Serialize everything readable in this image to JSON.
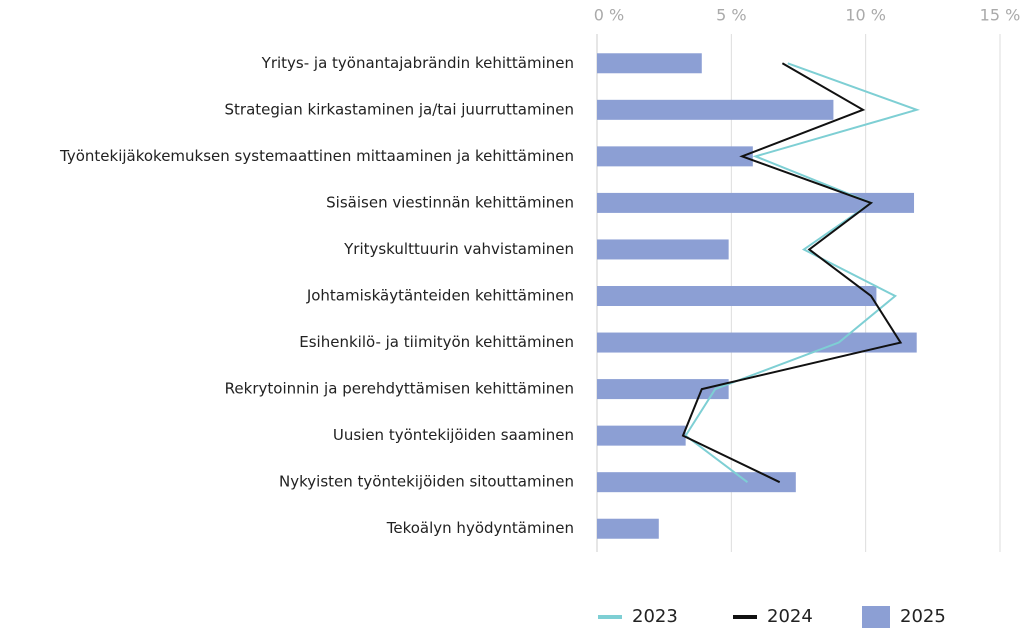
{
  "chart_data": {
    "type": "bar",
    "orientation": "horizontal",
    "categories": [
      "Yritys- ja työnantajabrändin kehittäminen",
      "Strategian kirkastaminen ja/tai juurruttaminen",
      "Työntekijäkokemuksen systemaattinen mittaaminen ja kehittäminen",
      "Sisäisen viestinnän kehittäminen",
      "Yrityskulttuurin vahvistaminen",
      "Johtamiskäytänteiden kehittäminen",
      "Esihenkilö- ja tiimityön kehittäminen",
      "Rekrytoinnin ja perehdyttämisen kehittäminen",
      "Uusien työntekijöiden saaminen",
      "Nykyisten työntekijöiden sitouttaminen",
      "Tekoälyn hyödyntäminen"
    ],
    "series": [
      {
        "name": "2023",
        "type": "line",
        "color": "#7ecfd4",
        "values": [
          7.1,
          11.9,
          5.9,
          10.2,
          7.7,
          11.1,
          9.0,
          4.4,
          3.3,
          5.6,
          null
        ]
      },
      {
        "name": "2024",
        "type": "line",
        "color": "#111111",
        "values": [
          6.9,
          9.9,
          5.4,
          10.2,
          7.9,
          10.2,
          11.3,
          3.9,
          3.2,
          6.8,
          null
        ]
      },
      {
        "name": "2025",
        "type": "bar",
        "color": "#8c9fd4",
        "values": [
          3.9,
          8.8,
          5.8,
          11.8,
          4.9,
          10.4,
          11.9,
          4.9,
          3.3,
          7.4,
          2.3
        ]
      }
    ],
    "xlim": [
      0,
      15
    ],
    "xticks": [
      {
        "value": 0,
        "label": "0 %"
      },
      {
        "value": 5,
        "label": "5 %"
      },
      {
        "value": 10,
        "label": "10 %"
      },
      {
        "value": 15,
        "label": "15 %"
      }
    ],
    "grid": true,
    "legend": "bottom"
  }
}
